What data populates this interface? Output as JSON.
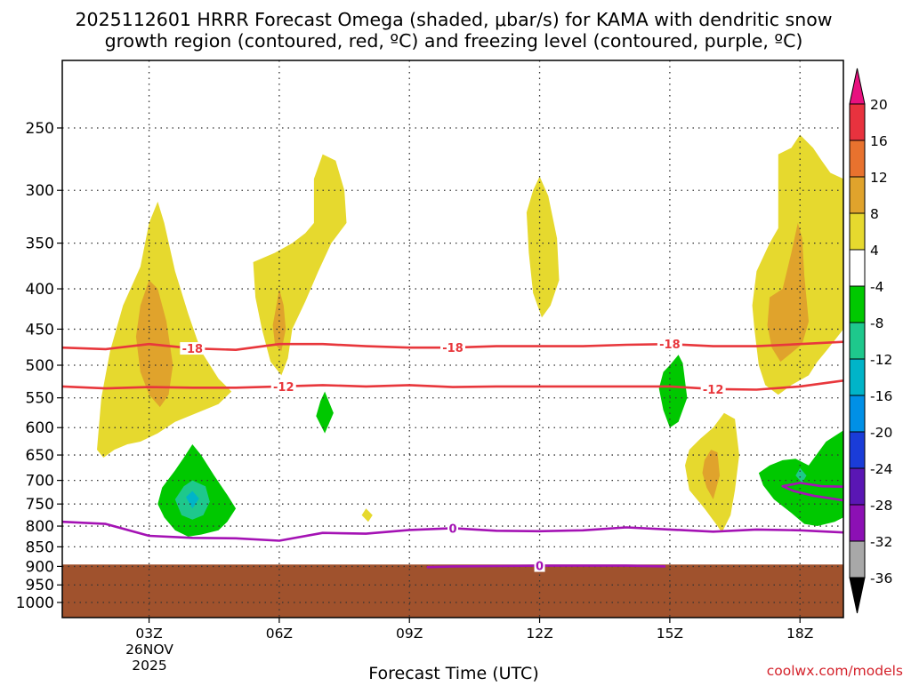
{
  "chart_data": {
    "type": "time-height cross section (filled + line contours)",
    "title_line1": "2025112601 HRRR Forecast Omega (shaded, μbar/s) for KAMA with dendritic snow",
    "title_line2": "growth region (contoured, red, ºC) and freezing level (contoured, purple, ºC)",
    "xlabel": "Forecast Time (UTC)",
    "x_range_hours": [
      1,
      19
    ],
    "x_ticks": [
      {
        "hour": 3,
        "label": "03Z"
      },
      {
        "hour": 6,
        "label": "06Z"
      },
      {
        "hour": 9,
        "label": "09Z"
      },
      {
        "hour": 12,
        "label": "12Z"
      },
      {
        "hour": 15,
        "label": "15Z"
      },
      {
        "hour": 18,
        "label": "18Z"
      }
    ],
    "date_label_day": "26NOV",
    "date_label_year": "2025",
    "ylabel": "",
    "y_range_hpa": [
      1050,
      200
    ],
    "y_ticks_hpa": [
      250,
      300,
      350,
      400,
      450,
      500,
      550,
      600,
      650,
      700,
      750,
      800,
      850,
      900,
      950,
      1000
    ],
    "grid": "dotted, both axes",
    "colorbar": {
      "labels": [
        "20",
        "16",
        "12",
        "8",
        "4",
        "-4",
        "-8",
        "-12",
        "-16",
        "-20",
        "-24",
        "-28",
        "-32",
        "-36"
      ],
      "colors_top_to_bottom": [
        "#e8117f",
        "#e8323e",
        "#e8722e",
        "#e0a32c",
        "#e6d92e",
        "#ffffff",
        "#00c800",
        "#1ec88c",
        "#00b4c8",
        "#0090e6",
        "#1a3cd8",
        "#5a16b4",
        "#8c10b4",
        "#a8a8a8",
        "#000000"
      ]
    },
    "ground_color": "#a0522d",
    "omega_fill_colors": {
      "4_to_8": "#e6d92e",
      "8_to_12": "#e0a32c",
      "-8_to_-4": "#00c800",
      "-12_to_-8": "#1ec88c",
      "-16_to_-12": "#00b4c8"
    },
    "omega_regions": [
      {
        "level": "4 to 8",
        "points": [
          [
            1.8,
            640
          ],
          [
            1.9,
            550
          ],
          [
            2.1,
            480
          ],
          [
            2.4,
            420
          ],
          [
            2.8,
            375
          ],
          [
            3.0,
            330
          ],
          [
            3.2,
            310
          ],
          [
            3.35,
            330
          ],
          [
            3.6,
            380
          ],
          [
            3.9,
            430
          ],
          [
            4.2,
            480
          ],
          [
            4.6,
            520
          ],
          [
            4.9,
            540
          ],
          [
            4.6,
            560
          ],
          [
            4.1,
            575
          ],
          [
            3.6,
            590
          ],
          [
            3.2,
            610
          ],
          [
            2.8,
            625
          ],
          [
            2.5,
            630
          ],
          [
            2.2,
            640
          ],
          [
            1.95,
            655
          ]
        ]
      },
      {
        "level": "8 to 12",
        "points": [
          [
            2.7,
            460
          ],
          [
            2.8,
            420
          ],
          [
            3.0,
            390
          ],
          [
            3.2,
            400
          ],
          [
            3.4,
            440
          ],
          [
            3.55,
            500
          ],
          [
            3.45,
            545
          ],
          [
            3.25,
            565
          ],
          [
            3.0,
            545
          ],
          [
            2.8,
            510
          ]
        ]
      },
      {
        "level": "4 to 8",
        "points": [
          [
            5.4,
            370
          ],
          [
            5.9,
            360
          ],
          [
            6.3,
            350
          ],
          [
            6.6,
            340
          ],
          [
            6.8,
            330
          ],
          [
            6.8,
            290
          ],
          [
            7.0,
            270
          ],
          [
            7.3,
            275
          ],
          [
            7.5,
            300
          ],
          [
            7.55,
            330
          ],
          [
            7.2,
            350
          ],
          [
            6.9,
            380
          ],
          [
            6.6,
            415
          ],
          [
            6.3,
            450
          ],
          [
            6.2,
            490
          ],
          [
            6.05,
            515
          ],
          [
            5.8,
            495
          ],
          [
            5.6,
            450
          ],
          [
            5.45,
            410
          ]
        ]
      },
      {
        "level": "8 to 12",
        "points": [
          [
            5.85,
            445
          ],
          [
            5.95,
            415
          ],
          [
            6.0,
            400
          ],
          [
            6.1,
            420
          ],
          [
            6.15,
            450
          ],
          [
            6.05,
            480
          ],
          [
            5.9,
            470
          ]
        ]
      },
      {
        "level": "-8 to -4",
        "points": [
          [
            6.85,
            580
          ],
          [
            6.95,
            555
          ],
          [
            7.05,
            540
          ],
          [
            7.25,
            575
          ],
          [
            7.05,
            610
          ]
        ]
      },
      {
        "level": "4 to 8",
        "points": [
          [
            7.9,
            775
          ],
          [
            8.0,
            760
          ],
          [
            8.15,
            775
          ],
          [
            8.05,
            790
          ]
        ]
      },
      {
        "level": "4 to 8",
        "points": [
          [
            11.7,
            320
          ],
          [
            11.85,
            300
          ],
          [
            12.0,
            288
          ],
          [
            12.2,
            305
          ],
          [
            12.4,
            345
          ],
          [
            12.45,
            390
          ],
          [
            12.25,
            420
          ],
          [
            12.05,
            435
          ],
          [
            11.85,
            405
          ],
          [
            11.75,
            360
          ]
        ]
      },
      {
        "level": "-8 to -4",
        "points": [
          [
            15.0,
            500
          ],
          [
            15.2,
            485
          ],
          [
            15.3,
            497
          ],
          [
            15.4,
            550
          ],
          [
            15.2,
            590
          ],
          [
            15.0,
            600
          ],
          [
            14.85,
            570
          ],
          [
            14.75,
            535
          ],
          [
            14.85,
            510
          ]
        ]
      },
      {
        "level": "4 to 8",
        "points": [
          [
            16.0,
            600
          ],
          [
            16.25,
            575
          ],
          [
            16.5,
            585
          ],
          [
            16.6,
            650
          ],
          [
            16.5,
            720
          ],
          [
            16.4,
            775
          ],
          [
            16.2,
            815
          ],
          [
            16.1,
            800
          ],
          [
            15.8,
            760
          ],
          [
            15.45,
            720
          ],
          [
            15.35,
            670
          ],
          [
            15.45,
            640
          ],
          [
            15.7,
            620
          ]
        ]
      },
      {
        "level": "8 to 12",
        "points": [
          [
            15.8,
            660
          ],
          [
            15.95,
            640
          ],
          [
            16.1,
            645
          ],
          [
            16.15,
            690
          ],
          [
            16.0,
            740
          ],
          [
            15.85,
            715
          ],
          [
            15.75,
            685
          ]
        ]
      },
      {
        "level": "4 to 8",
        "points": [
          [
            17.0,
            380
          ],
          [
            17.3,
            350
          ],
          [
            17.5,
            335
          ],
          [
            17.5,
            270
          ],
          [
            17.8,
            265
          ],
          [
            18.0,
            255
          ],
          [
            18.3,
            265
          ],
          [
            18.5,
            275
          ],
          [
            18.7,
            285
          ],
          [
            19.0,
            290
          ],
          [
            19.0,
            450
          ],
          [
            18.8,
            465
          ],
          [
            18.6,
            480
          ],
          [
            18.4,
            495
          ],
          [
            18.2,
            515
          ],
          [
            17.8,
            530
          ],
          [
            17.5,
            545
          ],
          [
            17.2,
            530
          ],
          [
            17.05,
            500
          ],
          [
            16.95,
            450
          ],
          [
            16.9,
            420
          ]
        ]
      },
      {
        "level": "8 to 12",
        "points": [
          [
            17.3,
            410
          ],
          [
            17.6,
            400
          ],
          [
            17.8,
            360
          ],
          [
            17.95,
            330
          ],
          [
            18.05,
            345
          ],
          [
            18.1,
            385
          ],
          [
            18.2,
            440
          ],
          [
            18.05,
            470
          ],
          [
            17.85,
            480
          ],
          [
            17.55,
            495
          ],
          [
            17.35,
            475
          ],
          [
            17.25,
            445
          ]
        ]
      },
      {
        "level": "-8 to -4",
        "points": [
          [
            18.2,
            670
          ],
          [
            18.6,
            625
          ],
          [
            19.0,
            605
          ],
          [
            19.0,
            780
          ],
          [
            18.8,
            790
          ],
          [
            18.4,
            800
          ],
          [
            18.1,
            795
          ],
          [
            17.8,
            770
          ],
          [
            17.4,
            740
          ],
          [
            17.15,
            710
          ],
          [
            17.05,
            685
          ],
          [
            17.3,
            670
          ],
          [
            17.6,
            660
          ],
          [
            17.9,
            657
          ]
        ]
      },
      {
        "level": "-12 to -8",
        "points": [
          [
            17.9,
            690
          ],
          [
            18.0,
            675
          ],
          [
            18.15,
            690
          ],
          [
            18.05,
            705
          ]
        ]
      },
      {
        "level": "-8 to -4",
        "points": [
          [
            3.3,
            715
          ],
          [
            3.6,
            680
          ],
          [
            3.8,
            655
          ],
          [
            4.0,
            630
          ],
          [
            4.2,
            650
          ],
          [
            4.5,
            690
          ],
          [
            4.8,
            730
          ],
          [
            5.0,
            760
          ],
          [
            4.8,
            790
          ],
          [
            4.6,
            810
          ],
          [
            4.2,
            820
          ],
          [
            3.9,
            825
          ],
          [
            3.6,
            810
          ],
          [
            3.35,
            780
          ],
          [
            3.2,
            750
          ]
        ]
      },
      {
        "level": "-12 to -8",
        "points": [
          [
            3.6,
            740
          ],
          [
            3.8,
            712
          ],
          [
            4.0,
            700
          ],
          [
            4.3,
            712
          ],
          [
            4.4,
            745
          ],
          [
            4.25,
            775
          ],
          [
            4.0,
            785
          ],
          [
            3.75,
            775
          ]
        ]
      },
      {
        "level": "-16 to -12",
        "points": [
          [
            3.85,
            735
          ],
          [
            4.0,
            722
          ],
          [
            4.15,
            738
          ],
          [
            4.0,
            760
          ]
        ]
      }
    ],
    "series": [
      {
        "name": "-18",
        "color": "#e8373c",
        "points": [
          [
            1,
            475
          ],
          [
            2,
            477
          ],
          [
            3,
            470
          ],
          [
            4,
            476
          ],
          [
            5,
            478
          ],
          [
            6,
            470
          ],
          [
            7,
            470
          ],
          [
            8,
            473
          ],
          [
            9,
            475
          ],
          [
            10,
            475
          ],
          [
            11,
            473
          ],
          [
            12,
            473
          ],
          [
            13,
            473
          ],
          [
            14,
            471
          ],
          [
            15,
            470
          ],
          [
            16,
            473
          ],
          [
            17,
            473
          ],
          [
            18,
            470
          ],
          [
            19,
            467
          ]
        ],
        "labels_at_hours": [
          4,
          10,
          15
        ]
      },
      {
        "name": "-12",
        "color": "#e8373c",
        "points": [
          [
            1,
            532
          ],
          [
            2,
            535
          ],
          [
            3,
            533
          ],
          [
            4,
            534
          ],
          [
            5,
            534
          ],
          [
            6,
            532
          ],
          [
            7,
            530
          ],
          [
            8,
            532
          ],
          [
            9,
            530
          ],
          [
            10,
            533
          ],
          [
            11,
            532
          ],
          [
            12,
            532
          ],
          [
            13,
            532
          ],
          [
            14,
            532
          ],
          [
            15,
            532
          ],
          [
            16,
            536
          ],
          [
            17,
            537
          ],
          [
            18,
            532
          ],
          [
            19,
            523
          ]
        ],
        "labels_at_hours": [
          6.1,
          16
        ]
      },
      {
        "name": "0",
        "color": "#a412b4",
        "points": [
          [
            1,
            790
          ],
          [
            2,
            795
          ],
          [
            3,
            823
          ],
          [
            4,
            828
          ],
          [
            5,
            829
          ],
          [
            6,
            835
          ],
          [
            7,
            816
          ],
          [
            8,
            818
          ],
          [
            9,
            809
          ],
          [
            10,
            805
          ],
          [
            11,
            811
          ],
          [
            12,
            812
          ],
          [
            13,
            810
          ],
          [
            14,
            803
          ],
          [
            15,
            808
          ],
          [
            16,
            813
          ],
          [
            17,
            808
          ],
          [
            18,
            810
          ],
          [
            19,
            815
          ]
        ],
        "labels_at_hours": [
          10
        ]
      },
      {
        "name": "0",
        "color": "#a412b4",
        "points": [
          [
            9.4,
            902
          ],
          [
            10,
            900
          ],
          [
            11,
            899
          ],
          [
            12,
            898
          ],
          [
            13,
            898
          ],
          [
            14,
            898
          ],
          [
            14.9,
            900
          ]
        ],
        "labels_at_hours": [
          12
        ]
      },
      {
        "name": "0",
        "color": "#a412b4",
        "points": [
          [
            19,
            713
          ],
          [
            18.5,
            712
          ],
          [
            18.0,
            705
          ],
          [
            17.6,
            712
          ],
          [
            17.85,
            722
          ],
          [
            18.3,
            732
          ],
          [
            19,
            742
          ]
        ],
        "labels_at_hours": []
      }
    ],
    "ground": {
      "pressure_hpa": 895
    }
  },
  "footer": {
    "site": "coolwx.com/models"
  }
}
